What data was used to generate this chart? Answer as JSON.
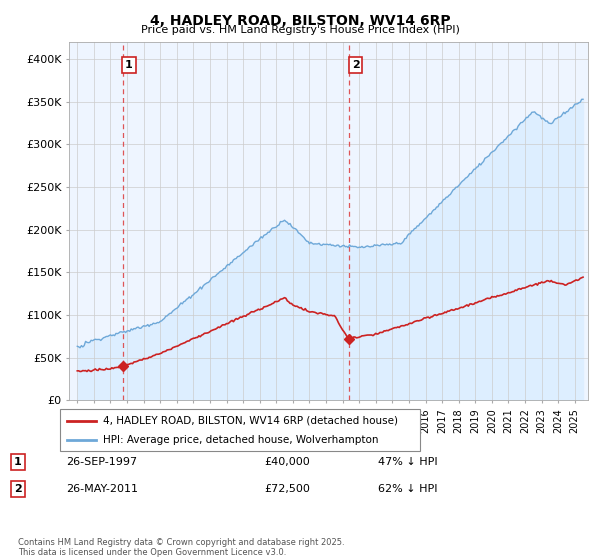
{
  "title": "4, HADLEY ROAD, BILSTON, WV14 6RP",
  "subtitle": "Price paid vs. HM Land Registry's House Price Index (HPI)",
  "ylabel_ticks": [
    "£0",
    "£50K",
    "£100K",
    "£150K",
    "£200K",
    "£250K",
    "£300K",
    "£350K",
    "£400K"
  ],
  "ytick_vals": [
    0,
    50000,
    100000,
    150000,
    200000,
    250000,
    300000,
    350000,
    400000
  ],
  "ylim": [
    0,
    420000
  ],
  "xlim_start": 1994.5,
  "xlim_end": 2025.8,
  "hpi_color": "#6ea8d8",
  "hpi_fill_color": "#ddeeff",
  "price_color": "#cc2222",
  "vline_color": "#dd4444",
  "sale1_x": 1997.73,
  "sale1_y": 40000,
  "sale2_x": 2011.4,
  "sale2_y": 72500,
  "legend_entries": [
    "4, HADLEY ROAD, BILSTON, WV14 6RP (detached house)",
    "HPI: Average price, detached house, Wolverhampton"
  ],
  "table_rows": [
    [
      "1",
      "26-SEP-1997",
      "£40,000",
      "47% ↓ HPI"
    ],
    [
      "2",
      "26-MAY-2011",
      "£72,500",
      "62% ↓ HPI"
    ]
  ],
  "footnote": "Contains HM Land Registry data © Crown copyright and database right 2025.\nThis data is licensed under the Open Government Licence v3.0.",
  "background_color": "#ffffff"
}
